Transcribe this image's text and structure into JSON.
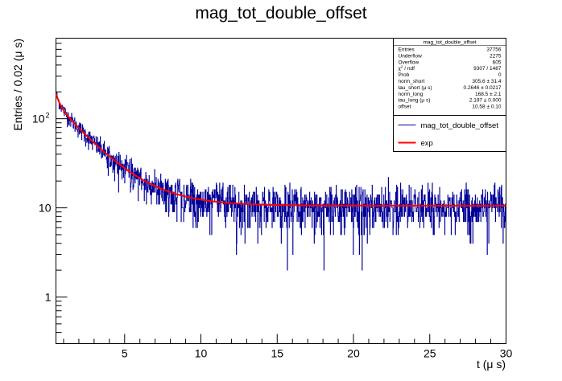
{
  "chart_data": {
    "type": "line",
    "title": "mag_tot_double_offset",
    "xlabel": "t (μ s)",
    "ylabel": "Entries / 0.02 (μ s)",
    "xlim": [
      0.5,
      30
    ],
    "ylim": [
      0.3,
      800
    ],
    "log_y": true,
    "x_ticks": [
      {
        "value": 5,
        "label": "5"
      },
      {
        "value": 10,
        "label": "10"
      },
      {
        "value": 15,
        "label": "15"
      },
      {
        "value": 20,
        "label": "20"
      },
      {
        "value": 25,
        "label": "25"
      },
      {
        "value": 30,
        "label": "30"
      }
    ],
    "y_ticks": [
      {
        "value": 1,
        "label": "1"
      },
      {
        "value": 10,
        "label": "10"
      },
      {
        "value": 100,
        "label": "10",
        "sup": "2"
      }
    ],
    "series": [
      {
        "name": "mag_tot_double_offset",
        "color": "#000099",
        "kind": "histogram",
        "bin_width": 0.02,
        "model": {
          "norm_short": 305.6,
          "tau_short": 0.2646,
          "norm_long": 168.5,
          "tau_long": 2.197,
          "offset": 10.58
        }
      },
      {
        "name": "exp",
        "color": "#ff0000",
        "kind": "fit",
        "model": {
          "norm_short": 305.6,
          "tau_short": 0.2646,
          "norm_long": 168.5,
          "tau_long": 2.197,
          "offset": 10.58
        }
      }
    ],
    "stats_box": {
      "title": "mag_tot_double_offset",
      "rows": [
        {
          "label": "Entries",
          "value": "37756"
        },
        {
          "label": "Underflow",
          "value": "2275"
        },
        {
          "label": "Overflow",
          "value": "605"
        },
        {
          "label": "χ",
          "label_sup": "2",
          "label_rest": " / ndf",
          "value": "9307 / 1487"
        },
        {
          "label": "Prob",
          "value": "0"
        },
        {
          "label": "norm_short",
          "value": "305.6 ± 31.4"
        },
        {
          "label": "tau_short (μ s)",
          "value": "0.2646 ± 0.0217"
        },
        {
          "label": "norm_long",
          "value": "168.5 ± 2.1"
        },
        {
          "label": "tau_long (μ s)",
          "value": "2.197 ± 0.000"
        },
        {
          "label": "offset",
          "value": "10.58 ± 0.10"
        }
      ]
    },
    "legend": {
      "placement": "top-right",
      "entries": [
        {
          "label": "mag_tot_double_offset",
          "color": "#000099"
        },
        {
          "label": "exp",
          "color": "#ff0000"
        }
      ]
    }
  }
}
